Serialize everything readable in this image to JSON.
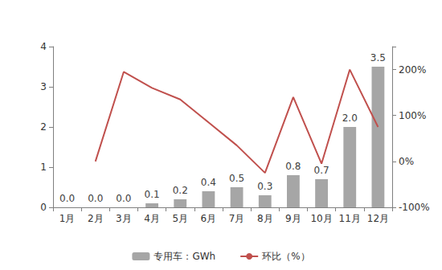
{
  "chart_data": {
    "type": "bar",
    "categories": [
      "1月",
      "2月",
      "3月",
      "4月",
      "5月",
      "6月",
      "7月",
      "8月",
      "9月",
      "10月",
      "11月",
      "12月"
    ],
    "series": [
      {
        "name": "专用车：GWh",
        "type": "bar",
        "color": "#a6a6a6",
        "values": [
          0,
          0,
          0,
          0.1,
          0.2,
          0.4,
          0.5,
          0.3,
          0.8,
          0.7,
          2,
          3.5
        ],
        "value_labels": [
          "0.0",
          "0.0",
          "0.0",
          "0.1",
          "0.2",
          "0.4",
          "0.5",
          "0.3",
          "0.8",
          "0.7",
          "2.0",
          "3.5"
        ],
        "data_labels": true
      },
      {
        "name": "环比（%）",
        "type": "line",
        "color": "#c0504d",
        "axis": "y2",
        "marker": "none",
        "values": [
          null,
          0,
          195,
          160,
          135,
          85,
          35,
          -25,
          140,
          -5,
          200,
          75
        ]
      }
    ],
    "ylim": [
      0,
      4
    ],
    "yticks": [
      0,
      1,
      2,
      3,
      4
    ],
    "y2lim": [
      -100,
      250
    ],
    "y2ticks": [
      {
        "value": -100,
        "label": "-100%"
      },
      {
        "value": 0,
        "label": "0%"
      },
      {
        "value": 100,
        "label": "100%"
      },
      {
        "value": 200,
        "label": "200%"
      }
    ],
    "grid": false,
    "legend": "bottom"
  }
}
